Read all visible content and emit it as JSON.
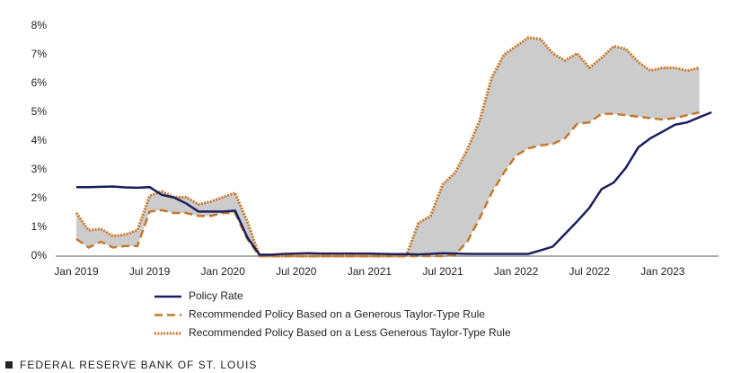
{
  "chart_data": {
    "type": "line",
    "categories": [
      "Jan 2019",
      null,
      null,
      null,
      null,
      null,
      "Jul 2019",
      null,
      null,
      null,
      null,
      null,
      "Jan 2020",
      null,
      null,
      null,
      null,
      null,
      "Jul 2020",
      null,
      null,
      null,
      null,
      null,
      "Jan 2021",
      null,
      null,
      null,
      null,
      null,
      "Jul 2021",
      null,
      null,
      null,
      null,
      null,
      "Jan 2022",
      null,
      null,
      null,
      null,
      null,
      "Jul 2022",
      null,
      null,
      null,
      null,
      null,
      "Jan 2023",
      null,
      null,
      null,
      null
    ],
    "series": [
      {
        "name": "Policy Rate",
        "color": "#1b1f5e",
        "style": "solid",
        "values": [
          2.4,
          2.4,
          2.41,
          2.42,
          2.39,
          2.38,
          2.4,
          2.13,
          2.04,
          1.83,
          1.55,
          1.55,
          1.55,
          1.58,
          0.65,
          0.05,
          0.05,
          0.08,
          0.09,
          0.1,
          0.09,
          0.09,
          0.09,
          0.09,
          0.09,
          0.08,
          0.07,
          0.07,
          0.06,
          0.08,
          0.1,
          0.09,
          0.08,
          0.08,
          0.08,
          0.08,
          0.08,
          0.08,
          0.2,
          0.33,
          0.77,
          1.21,
          1.68,
          2.33,
          2.56,
          3.08,
          3.78,
          4.1,
          4.33,
          4.57,
          4.65,
          4.83,
          5.0
        ]
      },
      {
        "name": "Recommended Policy Based on a Generous Taylor-Type Rule",
        "color": "#c5782c",
        "style": "dashed",
        "values": [
          0.6,
          0.3,
          0.5,
          0.3,
          0.35,
          0.35,
          1.55,
          1.6,
          1.5,
          1.5,
          1.4,
          1.4,
          1.5,
          1.5,
          0.6,
          0,
          0,
          0,
          0,
          0,
          0,
          0,
          0,
          0,
          0,
          0,
          0,
          0,
          0,
          0,
          0,
          0.05,
          0.5,
          1.3,
          2.2,
          2.9,
          3.5,
          3.75,
          3.85,
          3.9,
          4.1,
          4.6,
          4.65,
          4.95,
          4.95,
          4.9,
          4.85,
          4.8,
          4.75,
          4.8,
          4.9,
          5.0,
          null
        ]
      },
      {
        "name": "Recommended Policy Based on a Less Generous Taylor-Type Rule",
        "color": "#c5782c",
        "style": "dotted",
        "values": [
          1.5,
          0.9,
          0.95,
          0.7,
          0.75,
          0.9,
          2.1,
          2.25,
          2.05,
          2.05,
          1.8,
          1.9,
          2.05,
          2.2,
          1.2,
          0,
          0,
          0,
          0,
          0,
          0,
          0,
          0,
          0,
          0,
          0,
          0,
          0,
          1.15,
          1.4,
          2.5,
          2.9,
          3.7,
          4.7,
          6.2,
          7.0,
          7.3,
          7.6,
          7.55,
          7.05,
          6.8,
          7.05,
          6.55,
          6.9,
          7.3,
          7.2,
          6.75,
          6.45,
          6.55,
          6.55,
          6.45,
          6.55,
          null
        ]
      }
    ],
    "band_color": "#cccccc",
    "ylim": [
      0,
      8
    ],
    "yticks": [
      {
        "value": 0,
        "label": "0%"
      },
      {
        "value": 1,
        "label": "1%"
      },
      {
        "value": 2,
        "label": "2%"
      },
      {
        "value": 3,
        "label": "3%"
      },
      {
        "value": 4,
        "label": "4%"
      },
      {
        "value": 5,
        "label": "5%"
      },
      {
        "value": 6,
        "label": "6%"
      },
      {
        "value": 7,
        "label": "7%"
      },
      {
        "value": 8,
        "label": "8%"
      }
    ],
    "grid": false,
    "source": "FEDERAL RESERVE BANK OF ST. LOUIS"
  }
}
